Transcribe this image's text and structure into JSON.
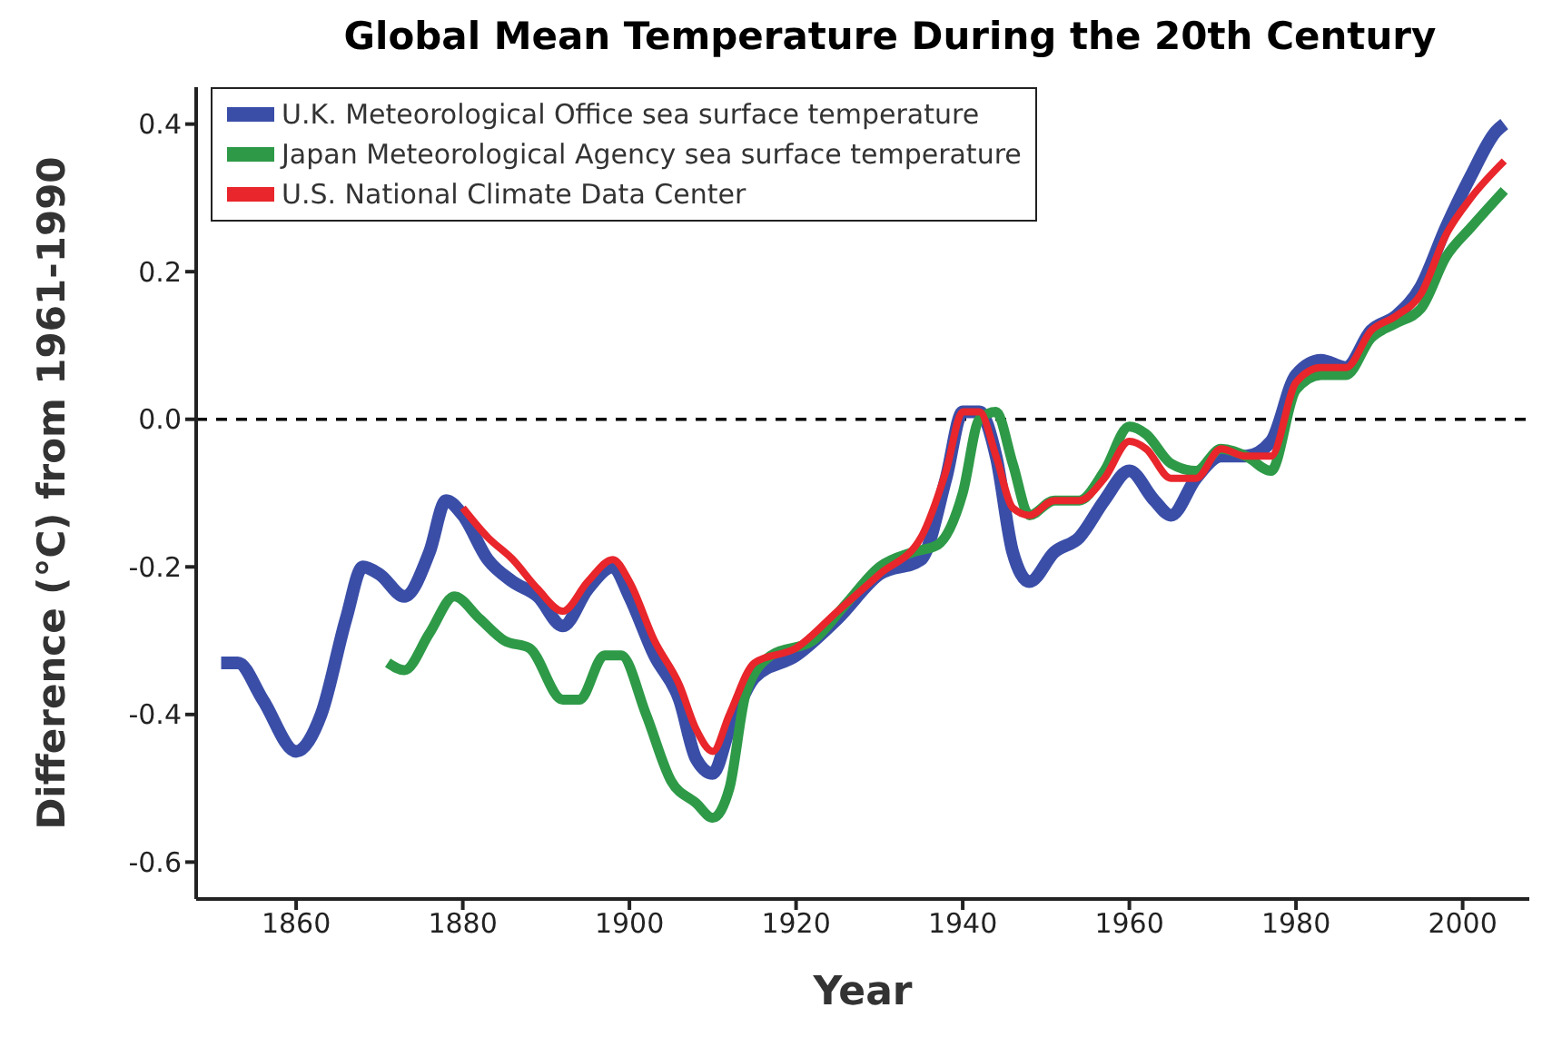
{
  "chart_data": {
    "type": "line",
    "title": "Global Mean Temperature During the 20th Century",
    "xlabel": "Year",
    "ylabel": "Difference (°C) from 1961-1990",
    "xlim": [
      1848,
      2008
    ],
    "xticks": [
      1860,
      1880,
      1900,
      1920,
      1940,
      1960,
      1980,
      2000
    ],
    "ylim": [
      -0.65,
      0.45
    ],
    "yticks": [
      {
        "value": -0.6,
        "label": "-0.6"
      },
      {
        "value": -0.4,
        "label": "-0.4"
      },
      {
        "value": -0.2,
        "label": "-0.2"
      },
      {
        "value": 0,
        "label": "0.0"
      },
      {
        "value": 0.2,
        "label": "0.2"
      },
      {
        "value": 0.4,
        "label": "0.4"
      }
    ],
    "grid": false,
    "legend": "top left",
    "marker": "none",
    "line_style": "solid",
    "ref_lines": [
      {
        "axis": "y",
        "value": 0,
        "color": "#000000",
        "line_style": "dashed"
      }
    ],
    "series": [
      {
        "name": "U.K. Meteorological Office sea surface temperature",
        "color": "#3a4ea8",
        "x": [
          1851,
          1853,
          1856,
          1860,
          1863,
          1866,
          1868,
          1870,
          1873,
          1876,
          1878,
          1880,
          1883,
          1886,
          1889,
          1892,
          1895,
          1898,
          1900,
          1903,
          1906,
          1908,
          1910,
          1912,
          1915,
          1920,
          1925,
          1930,
          1935,
          1938,
          1940,
          1942,
          1944,
          1946,
          1948,
          1951,
          1954,
          1957,
          1960,
          1963,
          1965,
          1968,
          1971,
          1974,
          1977,
          1980,
          1983,
          1986,
          1989,
          1992,
          1995,
          1998,
          2001,
          2004,
          2005
        ],
        "values": [
          -0.33,
          -0.33,
          -0.38,
          -0.45,
          -0.4,
          -0.27,
          -0.2,
          -0.21,
          -0.24,
          -0.18,
          -0.11,
          -0.13,
          -0.19,
          -0.22,
          -0.24,
          -0.28,
          -0.23,
          -0.2,
          -0.24,
          -0.32,
          -0.38,
          -0.46,
          -0.48,
          -0.42,
          -0.35,
          -0.32,
          -0.27,
          -0.21,
          -0.19,
          -0.08,
          0.01,
          0.01,
          -0.05,
          -0.18,
          -0.22,
          -0.18,
          -0.16,
          -0.11,
          -0.07,
          -0.11,
          -0.13,
          -0.08,
          -0.05,
          -0.05,
          -0.03,
          0.06,
          0.08,
          0.07,
          0.12,
          0.14,
          0.18,
          0.26,
          0.33,
          0.39,
          0.4
        ]
      },
      {
        "name": "Japan Meteorological Agency sea surface temperature",
        "color": "#2e9a48",
        "x": [
          1871,
          1873,
          1876,
          1879,
          1882,
          1885,
          1888,
          1892,
          1894,
          1897,
          1899,
          1902,
          1905,
          1908,
          1910,
          1912,
          1914,
          1917,
          1922,
          1926,
          1930,
          1934,
          1937,
          1940,
          1942,
          1944,
          1946,
          1948,
          1951,
          1954,
          1957,
          1960,
          1962,
          1965,
          1968,
          1971,
          1974,
          1977,
          1980,
          1983,
          1986,
          1989,
          1992,
          1995,
          1998,
          2001,
          2005
        ],
        "values": [
          -0.33,
          -0.34,
          -0.29,
          -0.24,
          -0.27,
          -0.3,
          -0.31,
          -0.38,
          -0.38,
          -0.32,
          -0.32,
          -0.4,
          -0.49,
          -0.52,
          -0.54,
          -0.5,
          -0.37,
          -0.32,
          -0.3,
          -0.25,
          -0.2,
          -0.18,
          -0.17,
          -0.1,
          0.0,
          0.01,
          -0.06,
          -0.13,
          -0.11,
          -0.11,
          -0.07,
          -0.01,
          -0.02,
          -0.06,
          -0.07,
          -0.04,
          -0.05,
          -0.07,
          0.04,
          0.06,
          0.06,
          0.11,
          0.13,
          0.15,
          0.22,
          0.26,
          0.31
        ]
      },
      {
        "name": "U.S. National Climate Data Center",
        "color": "#e8262b",
        "x": [
          1880,
          1883,
          1886,
          1889,
          1892,
          1895,
          1898,
          1900,
          1903,
          1906,
          1908,
          1910,
          1912,
          1915,
          1920,
          1925,
          1930,
          1935,
          1938,
          1940,
          1942,
          1944,
          1946,
          1948,
          1951,
          1954,
          1957,
          1960,
          1962,
          1965,
          1968,
          1971,
          1974,
          1977,
          1980,
          1983,
          1986,
          1989,
          1992,
          1995,
          1998,
          2001,
          2005
        ],
        "values": [
          -0.12,
          -0.16,
          -0.19,
          -0.23,
          -0.26,
          -0.22,
          -0.19,
          -0.22,
          -0.3,
          -0.36,
          -0.42,
          -0.45,
          -0.4,
          -0.33,
          -0.31,
          -0.26,
          -0.21,
          -0.16,
          -0.07,
          0.01,
          0.01,
          -0.05,
          -0.12,
          -0.13,
          -0.11,
          -0.11,
          -0.08,
          -0.03,
          -0.04,
          -0.08,
          -0.08,
          -0.04,
          -0.05,
          -0.05,
          0.05,
          0.07,
          0.07,
          0.12,
          0.14,
          0.17,
          0.25,
          0.3,
          0.35
        ]
      }
    ]
  }
}
